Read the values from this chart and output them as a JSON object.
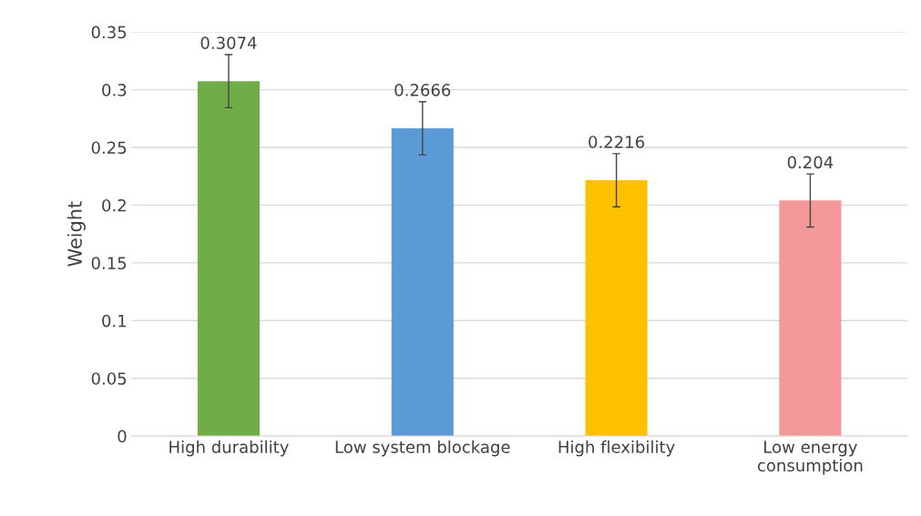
{
  "chart_data": {
    "type": "bar",
    "ylabel": "Weight",
    "categories": [
      "High durability",
      "Low system blockage",
      "High flexibility",
      "Low energy\nconsumption"
    ],
    "values": [
      0.3074,
      0.2666,
      0.2216,
      0.204
    ],
    "colors": [
      "#70ad47",
      "#5b9bd5",
      "#ffc000",
      "#f4999a"
    ],
    "errors": [
      0.023,
      0.023,
      0.023,
      0.023
    ],
    "data_labels": true,
    "ylim": [
      0,
      0.35
    ],
    "yticks": [
      0,
      0.05,
      0.1,
      0.15,
      0.2,
      0.25,
      0.3,
      0.35
    ],
    "grid": "y"
  }
}
